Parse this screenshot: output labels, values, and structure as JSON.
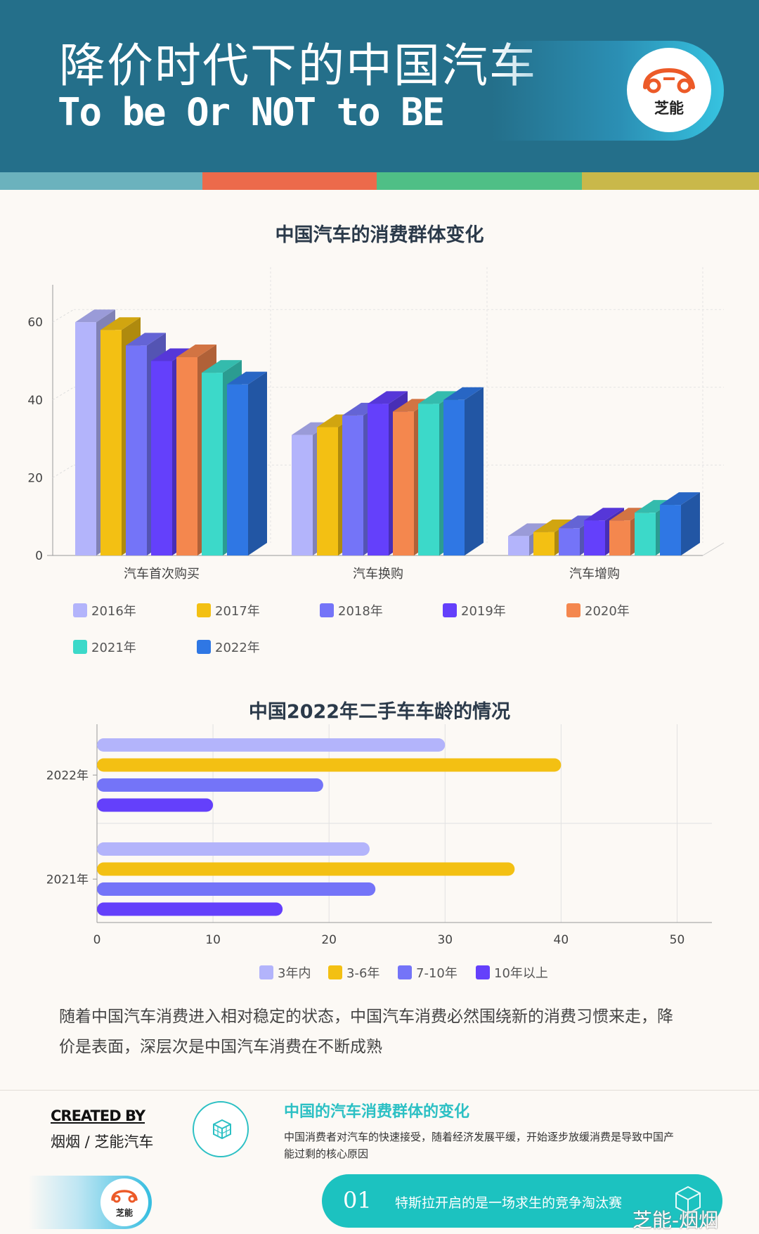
{
  "header": {
    "title": "降价时代下的中国汽车",
    "subtitle": "To be Or NOT to BE",
    "logo_text": "芝能"
  },
  "colors": {
    "header_bg": "#246f8a",
    "stripe": [
      "#6bb2bd",
      "#ec6a4b",
      "#4fbf86",
      "#c9b84a"
    ],
    "teal": "#2cc0c4"
  },
  "chart_data": [
    {
      "type": "bar",
      "title": "中国汽车的消费群体变化",
      "categories": [
        "汽车首次购买",
        "汽车换购",
        "汽车增购"
      ],
      "series": [
        {
          "name": "2016年",
          "color": "#b3b4fb",
          "values": [
            60,
            31,
            5
          ]
        },
        {
          "name": "2017年",
          "color": "#f3c013",
          "values": [
            58,
            33,
            6
          ]
        },
        {
          "name": "2018年",
          "color": "#7474f8",
          "values": [
            54,
            36,
            7
          ]
        },
        {
          "name": "2019年",
          "color": "#6440fb",
          "values": [
            50,
            39,
            9
          ]
        },
        {
          "name": "2020年",
          "color": "#f4874e",
          "values": [
            51,
            37,
            9
          ]
        },
        {
          "name": "2021年",
          "color": "#3cd9c9",
          "values": [
            47,
            39,
            11
          ]
        },
        {
          "name": "2022年",
          "color": "#2f77e4",
          "values": [
            44,
            40,
            13
          ]
        }
      ],
      "y_ticks": [
        "0",
        "20",
        "40",
        "60"
      ],
      "ylim": [
        0,
        70
      ],
      "grid": true,
      "legend": "bottom",
      "three_d": true
    },
    {
      "type": "bar",
      "orientation": "horizontal",
      "title": "中国2022年二手车车龄的情况",
      "categories": [
        "2022年",
        "2021年"
      ],
      "series": [
        {
          "name": "3年内",
          "color": "#b3b4fb",
          "values": [
            30,
            23.5
          ]
        },
        {
          "name": "3-6年",
          "color": "#f3c013",
          "values": [
            40,
            36
          ]
        },
        {
          "name": "7-10年",
          "color": "#7474f8",
          "values": [
            19.5,
            24
          ]
        },
        {
          "name": "10年以上",
          "color": "#6440fb",
          "values": [
            10,
            16
          ]
        }
      ],
      "x_ticks": [
        "0",
        "10",
        "20",
        "30",
        "40",
        "50"
      ],
      "xlim": [
        0,
        53
      ],
      "grid": true,
      "legend": "bottom"
    }
  ],
  "paragraph": "随着中国汽车消费进入相对稳定的状态，中国汽车消费必然围绕新的消费习惯来走，降价是表面，深层次是中国汽车消费在不断成熟",
  "footer": {
    "created_by": "CREATED BY",
    "names": "烟烟 / 芝能汽车",
    "heading": "中国的汽车消费群体的变化",
    "description": "中国消费者对汽车的快速接受，随着经济发展平缓，开始逐步放缓消费是导致中国产能过剩的核心原因",
    "small_logo_text": "芝能",
    "banner_number": "01",
    "banner_text": "特斯拉开启的是一场求生的竞争淘汰赛",
    "watermark": "芝能-烟烟"
  }
}
